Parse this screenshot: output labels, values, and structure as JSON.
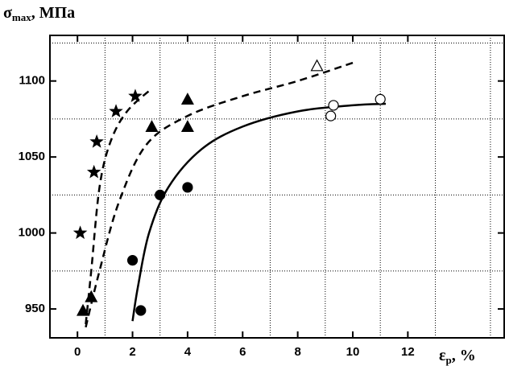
{
  "chart_data": {
    "type": "scatter",
    "y_label": {
      "symbol": "σ",
      "subscript": "max",
      "unit": ", МПа"
    },
    "x_label": {
      "symbol": "ε",
      "subscript": "p",
      "unit": ", %"
    },
    "xlim": [
      -1,
      15.5
    ],
    "ylim": [
      931,
      1130
    ],
    "xticks": [
      0,
      2,
      4,
      6,
      8,
      10,
      12
    ],
    "yticks": [
      950,
      1000,
      1050,
      1100
    ],
    "xgrid": [
      1,
      3,
      5,
      7,
      9,
      11,
      13,
      15
    ],
    "ygrid": [
      975,
      1025,
      1075,
      1125
    ],
    "series": [
      {
        "marker": "star",
        "filled": true,
        "x": [
          0.1,
          0.6,
          0.7,
          1.4,
          2.1
        ],
        "values": [
          1000,
          1040,
          1060,
          1080,
          1090
        ]
      },
      {
        "marker": "triangle",
        "filled": true,
        "x": [
          0.2,
          0.5,
          2.7,
          4,
          4
        ],
        "values": [
          949,
          958,
          1070,
          1070,
          1088
        ]
      },
      {
        "marker": "triangle",
        "filled": false,
        "x": [
          8.7
        ],
        "values": [
          1110
        ]
      },
      {
        "marker": "circle",
        "filled": true,
        "x": [
          2,
          2.3,
          3,
          4
        ],
        "values": [
          982,
          949,
          1025,
          1030
        ]
      },
      {
        "marker": "circle",
        "filled": false,
        "x": [
          9.2,
          9.3,
          11
        ],
        "values": [
          1077,
          1084,
          1088
        ]
      }
    ],
    "curves": [
      {
        "style": "dashed",
        "x": [
          0.3,
          0.5,
          0.8,
          1.2,
          1.8,
          2.7
        ],
        "values": [
          940,
          975,
          1030,
          1060,
          1080,
          1095
        ]
      },
      {
        "style": "dashed",
        "x": [
          0.3,
          0.8,
          1.5,
          2.5,
          4,
          6,
          8,
          10
        ],
        "values": [
          938,
          975,
          1020,
          1058,
          1077,
          1090,
          1100,
          1112
        ]
      },
      {
        "style": "solid",
        "x": [
          2,
          2.2,
          2.6,
          3.3,
          4.5,
          6,
          8,
          10,
          11.2
        ],
        "values": [
          942,
          965,
          1000,
          1030,
          1055,
          1070,
          1080,
          1084,
          1085
        ]
      }
    ]
  }
}
